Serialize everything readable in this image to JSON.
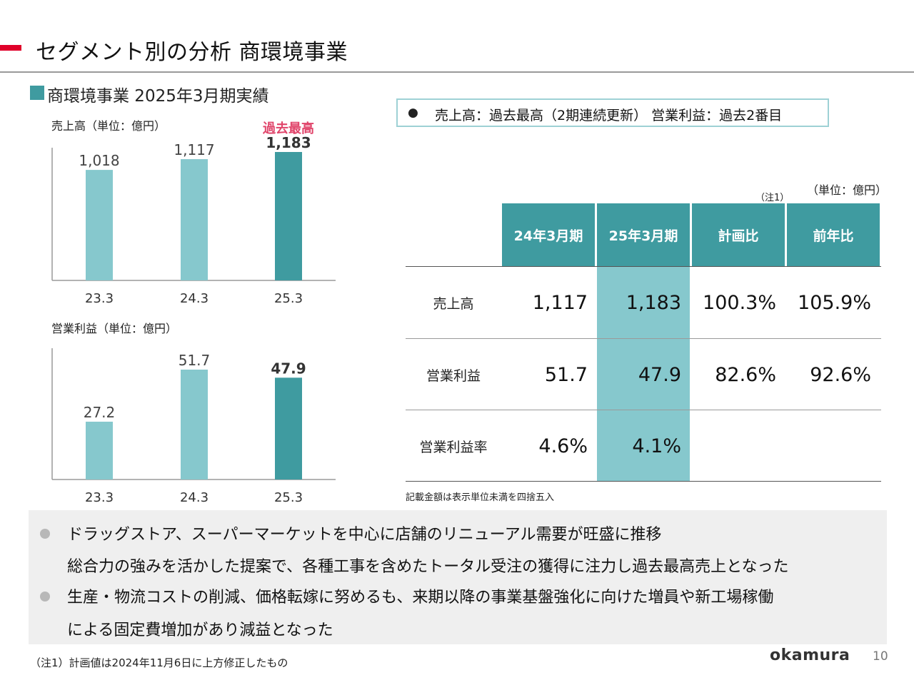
{
  "header": {
    "title": "セグメント別の分析 商環境事業",
    "accent_color": "#e0002a"
  },
  "section": {
    "title": "商環境事業 2025年3月期実績",
    "marker_color": "#3f9ba0"
  },
  "callout": {
    "bullet": "●",
    "text": "売上高：過去最高（2期連続更新） 営業利益：過去2番目"
  },
  "chart_data": [
    {
      "type": "bar",
      "title": "売上高（単位：億円）",
      "categories": [
        "23.3",
        "24.3",
        "25.3"
      ],
      "values": [
        1018,
        1117,
        1183
      ],
      "value_labels": [
        "1,018",
        "1,117",
        "1,183"
      ],
      "annotation": "過去最高",
      "annotation_color": "#e0446a",
      "colors": [
        "#86c8cd",
        "#86c8cd",
        "#3f9ba0"
      ],
      "ylim": [
        0,
        1183
      ]
    },
    {
      "type": "bar",
      "title": "営業利益（単位：億円）",
      "categories": [
        "23.3",
        "24.3",
        "25.3"
      ],
      "values": [
        27.2,
        51.7,
        47.9
      ],
      "value_labels": [
        "27.2",
        "51.7",
        "47.9"
      ],
      "colors": [
        "#86c8cd",
        "#86c8cd",
        "#3f9ba0"
      ],
      "ylim": [
        0,
        51.7
      ]
    }
  ],
  "table": {
    "unit": "（単位：億円）",
    "note_marker": "（注1）",
    "headers": [
      "24年3月期",
      "25年3月期",
      "計画比",
      "前年比"
    ],
    "rows": [
      {
        "label": "売上高",
        "cells": [
          "1,117",
          "1,183",
          "100.3%",
          "105.9%"
        ]
      },
      {
        "label": "営業利益",
        "cells": [
          "51.7",
          "47.9",
          "82.6%",
          "92.6%"
        ]
      },
      {
        "label": "営業利益率",
        "cells": [
          "4.6%",
          "4.1%",
          "",
          ""
        ]
      }
    ],
    "footnote": "記載金額は表示単位未満を四捨五入",
    "header_color": "#3f9ba0",
    "highlight_color": "#86c8cd"
  },
  "comments": [
    {
      "lines": [
        "ドラッグストア、スーパーマーケットを中心に店舗のリニューアル需要が旺盛に推移",
        "総合力の強みを活かした提案で、各種工事を含めたトータル受注の獲得に注力し過去最高売上となった"
      ]
    },
    {
      "lines": [
        "生産・物流コストの削減、価格転嫁に努めるも、来期以降の事業基盤強化に向けた増員や新工場稼働",
        "による固定費増加があり減益となった"
      ]
    }
  ],
  "footer": {
    "note": "（注1）計画値は2024年11月6日に上方修正したもの",
    "logo": "okamura",
    "page": "10"
  }
}
